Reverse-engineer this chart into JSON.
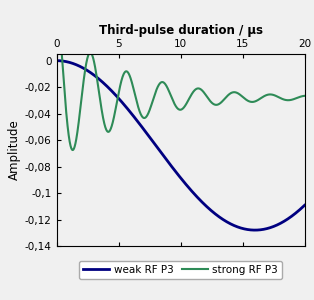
{
  "title": "Third-pulse duration / µs",
  "ylabel": "Amplitude",
  "xlim": [
    0,
    20
  ],
  "ylim": [
    -0.14,
    0.005
  ],
  "xticks": [
    0,
    5,
    10,
    15,
    20
  ],
  "yticks": [
    0,
    -0.02,
    -0.04,
    -0.06,
    -0.08,
    -0.1,
    -0.12,
    -0.14
  ],
  "ytick_labels": [
    "0",
    "-0,02",
    "-0,04",
    "-0,06",
    "-0,08",
    "-0,1",
    "-0,12",
    "-0,14"
  ],
  "weak_color": "#000080",
  "strong_color": "#2E8B57",
  "legend_labels": [
    "weak RF P3",
    "strong RF P3"
  ],
  "background_color": "#f0f0f0",
  "figsize": [
    3.14,
    3.0
  ],
  "dpi": 100
}
